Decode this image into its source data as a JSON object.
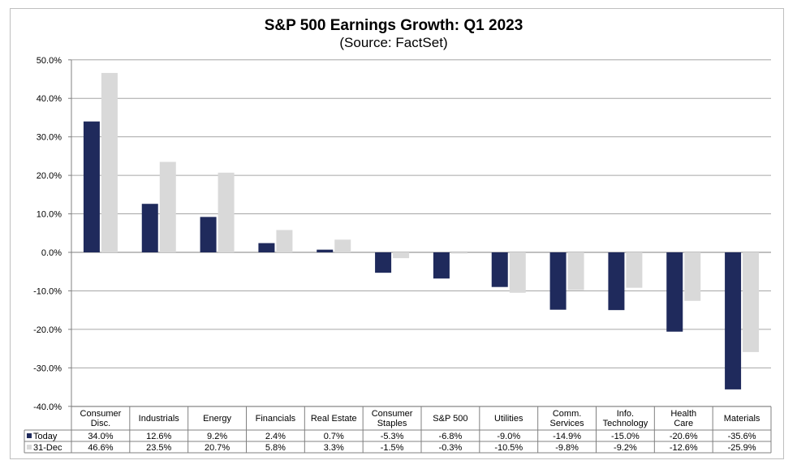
{
  "chart_data": {
    "type": "bar",
    "title": "S&P 500 Earnings Growth: Q1 2023",
    "subtitle": "(Source: FactSet)",
    "categories": [
      [
        "Consumer",
        "Disc."
      ],
      [
        "Industrials"
      ],
      [
        "Energy"
      ],
      [
        "Financials"
      ],
      [
        "Real Estate"
      ],
      [
        "Consumer",
        "Staples"
      ],
      [
        "S&P 500"
      ],
      [
        "Utilities"
      ],
      [
        "Comm.",
        "Services"
      ],
      [
        "Info.",
        "Technology"
      ],
      [
        "Health",
        "Care"
      ],
      [
        "Materials"
      ]
    ],
    "series": [
      {
        "name": "Today",
        "color": "#1f2a5c",
        "values": [
          34.0,
          12.6,
          9.2,
          2.4,
          0.7,
          -5.3,
          -6.8,
          -9.0,
          -14.9,
          -15.0,
          -20.6,
          -35.6
        ],
        "labels": [
          "34.0%",
          "12.6%",
          "9.2%",
          "2.4%",
          "0.7%",
          "-5.3%",
          "-6.8%",
          "-9.0%",
          "-14.9%",
          "-15.0%",
          "-20.6%",
          "-35.6%"
        ]
      },
      {
        "name": "31-Dec",
        "color": "#d9d9d9",
        "values": [
          46.6,
          23.5,
          20.7,
          5.8,
          3.3,
          -1.5,
          -0.3,
          -10.5,
          -9.8,
          -9.2,
          -12.6,
          -25.9
        ],
        "labels": [
          "46.6%",
          "23.5%",
          "20.7%",
          "5.8%",
          "3.3%",
          "-1.5%",
          "-0.3%",
          "-10.5%",
          "-9.8%",
          "-9.2%",
          "-12.6%",
          "-25.9%"
        ]
      }
    ],
    "ylim": [
      -40,
      50
    ],
    "yticks": [
      50,
      40,
      30,
      20,
      10,
      0,
      -10,
      -20,
      -30,
      -40
    ],
    "ytick_labels": [
      "50.0%",
      "40.0%",
      "30.0%",
      "20.0%",
      "10.0%",
      "0.0%",
      "-10.0%",
      "-20.0%",
      "-30.0%",
      "-40.0%"
    ],
    "grid": true,
    "legend": "data-table"
  }
}
